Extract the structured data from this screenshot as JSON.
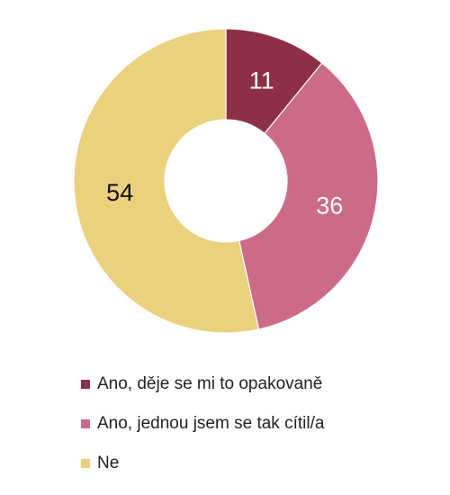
{
  "chart_data": {
    "type": "pie",
    "donut": true,
    "title": "",
    "categories": [
      "Ano, děje se mi to opakovaně",
      "Ano, jednou jsem se tak cítil/a",
      "Ne"
    ],
    "values": [
      11,
      36,
      54
    ],
    "data_labels": [
      "11",
      "36",
      "54"
    ],
    "colors": [
      "#8e2f48",
      "#cc6b88",
      "#ebd07e"
    ],
    "label_colors": [
      "#ffffff",
      "#ffffff",
      "#111111"
    ],
    "legend": {
      "placement": "bottom",
      "entries": [
        "Ano, děje se mi to opakovaně",
        "Ano, jednou jsem se tak cítil/a",
        "Ne"
      ]
    }
  }
}
